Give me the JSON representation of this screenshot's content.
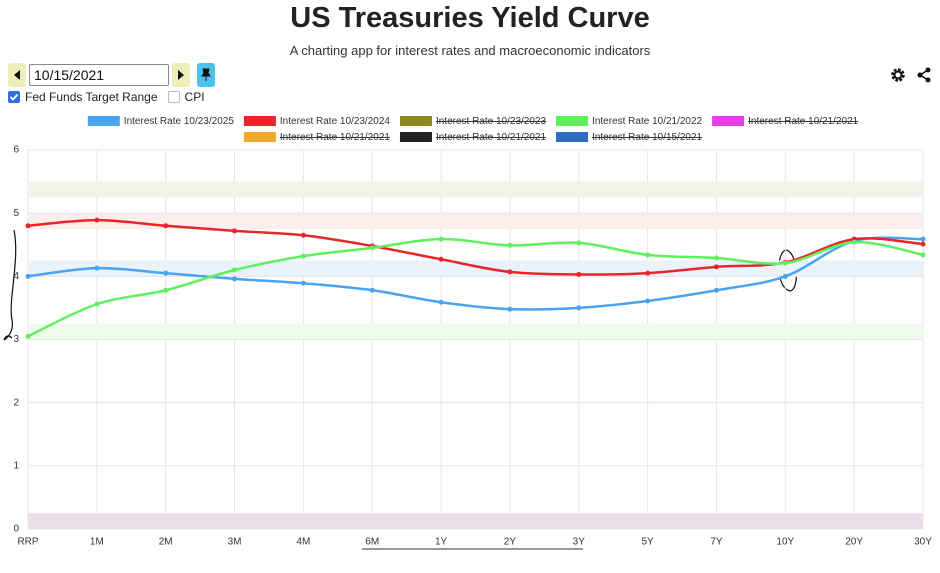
{
  "header": {
    "title": "US Treasuries Yield Curve",
    "subtitle": "A charting app for interest rates and macroeconomic indicators"
  },
  "controls": {
    "date": "10/15/2021",
    "checkboxes": [
      {
        "label": "Fed Funds Target Range",
        "checked": true
      },
      {
        "label": "CPI",
        "checked": false
      }
    ]
  },
  "chart_data": {
    "type": "line",
    "categories": [
      "RRP",
      "1M",
      "2M",
      "3M",
      "4M",
      "6M",
      "1Y",
      "2Y",
      "3Y",
      "5Y",
      "7Y",
      "10Y",
      "20Y",
      "30Y"
    ],
    "ylim": [
      0,
      6
    ],
    "yticks": [
      0,
      1,
      2,
      3,
      4,
      5,
      6
    ],
    "grid": true,
    "smooth": true,
    "series": [
      {
        "name": "Interest Rate 10/23/2025",
        "color": "#4aa3f0",
        "values": [
          4.0,
          4.13,
          4.05,
          3.96,
          3.89,
          3.78,
          3.59,
          3.48,
          3.5,
          3.61,
          3.78,
          4.0,
          4.56,
          4.59
        ]
      },
      {
        "name": "Interest Rate 10/23/2024",
        "color": "#e8262a",
        "values": [
          4.8,
          4.89,
          4.8,
          4.72,
          4.65,
          4.48,
          4.27,
          4.07,
          4.03,
          4.05,
          4.15,
          4.22,
          4.59,
          4.51
        ]
      },
      {
        "name": "Interest Rate 10/23/2023",
        "color": "#8b8b22",
        "hidden": true
      },
      {
        "name": "Interest Rate 10/21/2022",
        "color": "#5ef05e",
        "values": [
          3.05,
          3.56,
          3.78,
          4.1,
          4.32,
          4.45,
          4.59,
          4.49,
          4.53,
          4.34,
          4.29,
          4.21,
          4.54,
          4.34
        ]
      },
      {
        "name": "Interest Rate 10/21/2021",
        "color": "#e83ee8",
        "hidden": true
      },
      {
        "name": "Interest Rate 10/21/2021",
        "color": "#f0a830",
        "hidden": true
      },
      {
        "name": "Interest Rate 10/21/2021",
        "color": "#222222",
        "hidden": true
      },
      {
        "name": "Interest Rate 10/15/2021",
        "color": "#2d6cc0",
        "hidden": true
      }
    ],
    "bands": [
      {
        "range": [
          5.25,
          5.5
        ],
        "color": "#f3f3ea"
      },
      {
        "range": [
          4.75,
          5.0
        ],
        "color": "#fdeeee"
      },
      {
        "range": [
          4.0,
          4.25
        ],
        "color": "#eaf2fb"
      },
      {
        "range": [
          3.0,
          3.25
        ],
        "color": "#eefbee"
      },
      {
        "range": [
          0,
          0.25
        ],
        "color": "#e9dfe6"
      }
    ]
  }
}
